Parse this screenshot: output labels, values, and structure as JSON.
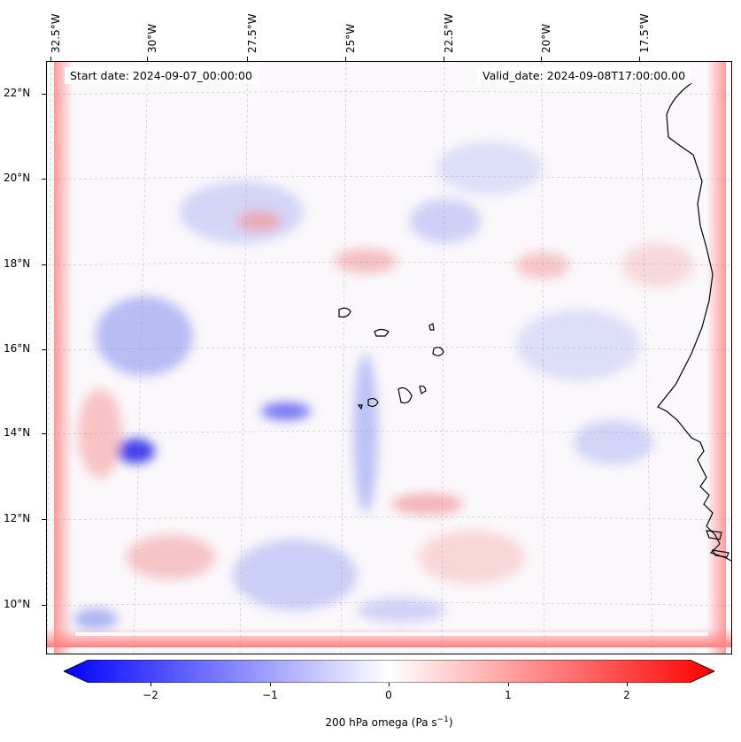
{
  "map": {
    "info_left": "Start date: 2024-09-07_00:00:00",
    "info_right": "Valid_date: 2024-09-08T17:00:00.00",
    "lon_labels": [
      "32.5°W",
      "30°W",
      "27.5°W",
      "25°W",
      "22.5°W",
      "20°W",
      "17.5°W"
    ],
    "lat_labels": [
      "22°N",
      "20°N",
      "18°N",
      "16°N",
      "14°N",
      "12°N",
      "10°N"
    ],
    "colors": {
      "negative": "#0000ff",
      "neutral": "#ffffff",
      "positive": "#ff0000",
      "coast": "#000000"
    }
  },
  "colorbar": {
    "tick_labels": [
      "−2",
      "−1",
      "0",
      "1",
      "2"
    ],
    "label": "200 hPa omega (Pa s",
    "label_sup": "−1",
    "label_end": ")",
    "range": [
      -2.5,
      2.5
    ]
  }
}
